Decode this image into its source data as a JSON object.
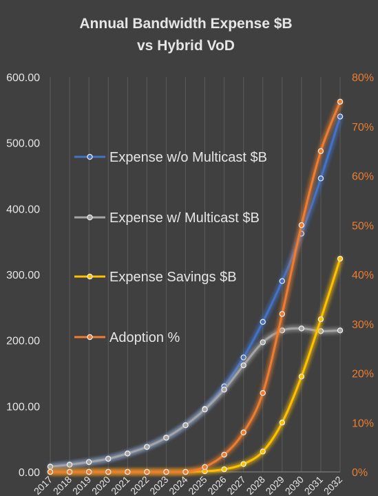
{
  "chart_data": {
    "type": "line",
    "title": "Annual Bandwidth Expense $B",
    "subtitle": "vs Hybrid VoD",
    "categories": [
      "2017",
      "2018",
      "2019",
      "2020",
      "2021",
      "2022",
      "2023",
      "2024",
      "2025",
      "2026",
      "2027",
      "2028",
      "2029",
      "2030",
      "2031",
      "2032"
    ],
    "y_left": {
      "ylim": [
        0,
        600
      ],
      "ticks": [
        "0.00",
        "100.00",
        "200.00",
        "300.00",
        "400.00",
        "500.00",
        "600.00"
      ]
    },
    "y_right": {
      "ylim": [
        0,
        80
      ],
      "ticks": [
        "0%",
        "10%",
        "20%",
        "30%",
        "40%",
        "50%",
        "60%",
        "70%",
        "80%"
      ]
    },
    "grid": "vertical",
    "legend_position": "inside-left",
    "series": [
      {
        "name": "Expense w/o Multicast $B",
        "axis": "left",
        "color": "#4472c4",
        "values": [
          8,
          11,
          15,
          20,
          28,
          38,
          52,
          71,
          96,
          130,
          174,
          228,
          290,
          362,
          446,
          540
        ]
      },
      {
        "name": "Expense w/ Multicast $B",
        "axis": "left",
        "color": "#a5a5a5",
        "values": [
          8,
          11,
          15,
          20,
          28,
          38,
          52,
          71,
          95,
          125,
          162,
          197,
          215,
          218,
          214,
          215
        ]
      },
      {
        "name": "Expense Savings $B",
        "axis": "left",
        "color": "#ffc000",
        "values": [
          0,
          0,
          0,
          0,
          0,
          0,
          0,
          0,
          1,
          4,
          12,
          31,
          75,
          145,
          232,
          324
        ]
      },
      {
        "name": "Adoption  %",
        "axis": "right",
        "color": "#ed7d31",
        "values": [
          0,
          0,
          0,
          0,
          0,
          0,
          0,
          0,
          1,
          3.5,
          8,
          16,
          32,
          50,
          65,
          75
        ]
      }
    ]
  }
}
